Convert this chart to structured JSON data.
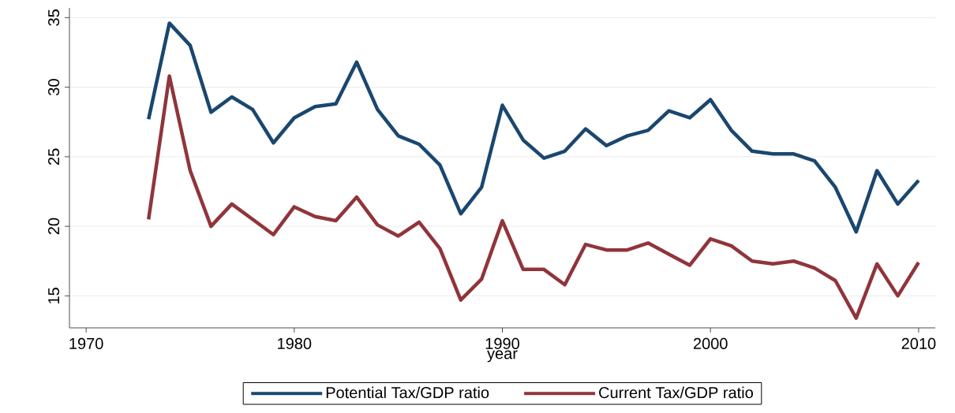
{
  "chart_data": {
    "type": "line",
    "xlabel": "year",
    "x": [
      1973,
      1974,
      1975,
      1976,
      1977,
      1978,
      1979,
      1980,
      1981,
      1982,
      1983,
      1984,
      1985,
      1986,
      1987,
      1988,
      1989,
      1990,
      1991,
      1992,
      1993,
      1994,
      1995,
      1996,
      1997,
      1998,
      1999,
      2000,
      2001,
      2002,
      2003,
      2004,
      2005,
      2006,
      2007,
      2008,
      2009,
      2010
    ],
    "series": [
      {
        "name": "Potential Tax/GDP ratio",
        "color": "#1a476f",
        "values": [
          27.7,
          34.6,
          33.0,
          28.2,
          29.3,
          28.4,
          26.0,
          27.8,
          28.6,
          28.8,
          31.8,
          28.4,
          26.5,
          25.9,
          24.4,
          20.9,
          22.8,
          28.7,
          26.2,
          24.9,
          25.4,
          27.0,
          25.8,
          26.5,
          26.9,
          28.3,
          27.8,
          29.1,
          26.9,
          25.4,
          25.2,
          25.2,
          24.7,
          22.8,
          19.6,
          24.0,
          21.6,
          23.3
        ]
      },
      {
        "name": "Current Tax/GDP ratio",
        "color": "#90353b",
        "values": [
          20.5,
          30.8,
          24.0,
          20.0,
          21.6,
          20.5,
          19.4,
          21.4,
          20.7,
          20.4,
          22.1,
          20.1,
          19.3,
          20.3,
          18.4,
          14.7,
          16.2,
          20.4,
          16.9,
          16.9,
          15.8,
          18.7,
          18.3,
          18.3,
          18.8,
          18.0,
          17.2,
          19.1,
          18.6,
          17.5,
          17.3,
          17.5,
          17.0,
          16.1,
          13.4,
          17.3,
          15.0,
          17.4
        ]
      }
    ],
    "xlim": [
      1969.2,
      2010.8
    ],
    "xticks": [
      1970,
      1980,
      1990,
      2000,
      2010
    ],
    "ylim": [
      12.7,
      35.7
    ],
    "yticks": [
      15,
      20,
      25,
      30,
      35
    ],
    "grid": "y",
    "legend": "bottom",
    "line_style": "solid",
    "marker": "none"
  }
}
